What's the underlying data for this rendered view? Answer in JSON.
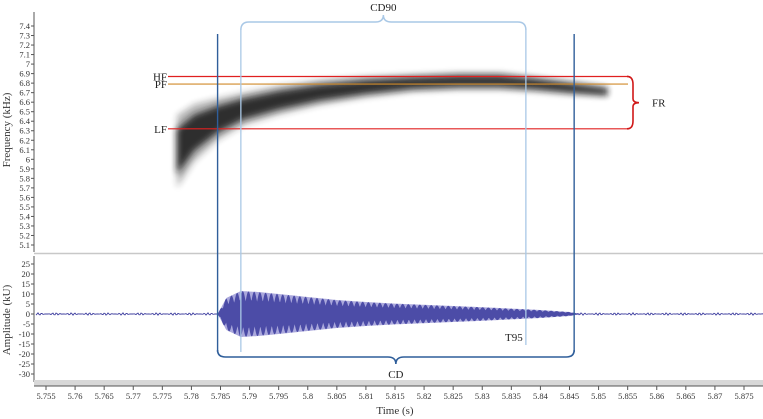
{
  "colors": {
    "background": "#ffffff",
    "axis": "#555555",
    "panel_divider": "#c8c8c8",
    "bottom_band": "#d8d8d8",
    "lf_hf_line": "#e02020",
    "pf_line": "#d08a2a",
    "fr_brace": "#d01818",
    "cd_lines": "#2f5e9a",
    "cd90_lines": "#a9c8e6",
    "waveform_outer": "#aaa8dc",
    "waveform_inner": "#3c3c9e",
    "spectrogram": "#1a1a1a"
  },
  "chart_data": {
    "type": "area",
    "figure": "spectrogram and oscillogram of a bat call with measured call parameters",
    "shared_x": {
      "label": "Time (s)",
      "ticks": [
        "5.755",
        "5.76",
        "5.765",
        "5.77",
        "5.775",
        "5.78",
        "5.785",
        "5.79",
        "5.795",
        "5.8",
        "5.805",
        "5.81",
        "5.815",
        "5.82",
        "5.825",
        "5.83",
        "5.835",
        "5.84",
        "5.845",
        "5.85",
        "5.855",
        "5.86",
        "5.865",
        "5.87",
        "5.875"
      ],
      "range": [
        5.7515,
        5.8792
      ]
    },
    "spectrogram": {
      "ylabel": "Frequency (kHz)",
      "yticks": [
        "5.1",
        "5.2",
        "5.3",
        "5.4",
        "5.5",
        "5.6",
        "5.7",
        "5.8",
        "5.9",
        "6",
        "6.1",
        "6.2",
        "6.3",
        "6.4",
        "6.5",
        "6.6",
        "6.7",
        "6.8",
        "6.9",
        "7",
        "7.1",
        "7.2",
        "7.3",
        "7.4"
      ],
      "ylim": [
        5.0,
        7.48
      ],
      "call_contour": {
        "time": [
          5.7775,
          5.7805,
          5.7845,
          5.789,
          5.795,
          5.802,
          5.81,
          5.818,
          5.826,
          5.833,
          5.839,
          5.845,
          5.8515
        ],
        "freq_center": [
          6.08,
          6.28,
          6.42,
          6.53,
          6.62,
          6.7,
          6.76,
          6.8,
          6.82,
          6.82,
          6.79,
          6.75,
          6.71
        ],
        "half_width": [
          0.38,
          0.3,
          0.22,
          0.17,
          0.15,
          0.13,
          0.11,
          0.09,
          0.09,
          0.09,
          0.08,
          0.07,
          0.05
        ]
      },
      "reference_lines": [
        {
          "label": "HF",
          "freq": 6.87
        },
        {
          "label": "PF",
          "freq": 6.79
        },
        {
          "label": "LF",
          "freq": 6.32
        }
      ],
      "fr_label": "FR"
    },
    "oscillogram": {
      "ylabel": "Amplitude (kU)",
      "yticks": [
        "25",
        "20",
        "15",
        "10",
        "5",
        "0",
        "-5",
        "-10",
        "-15",
        "-20",
        "-25",
        "-30"
      ],
      "ylim": [
        -33.5,
        30
      ],
      "noise_amplitude": 0.6,
      "envelope": {
        "time": [
          5.7845,
          5.786,
          5.7885,
          5.7915,
          5.795,
          5.8,
          5.805,
          5.81,
          5.815,
          5.82,
          5.825,
          5.83,
          5.835,
          5.84,
          5.845,
          5.847
        ],
        "amplitude": [
          0,
          8,
          11.5,
          11,
          10,
          8.5,
          7,
          6,
          5.2,
          4.6,
          4,
          3.4,
          2.7,
          2,
          1,
          0
        ]
      }
    },
    "annotations": [
      {
        "label": "CD",
        "start": 5.7845,
        "end": 5.8458
      },
      {
        "label": "CD90",
        "start": 5.7885,
        "end": 5.8375
      },
      {
        "label": "T95",
        "time": 5.8375
      }
    ]
  }
}
